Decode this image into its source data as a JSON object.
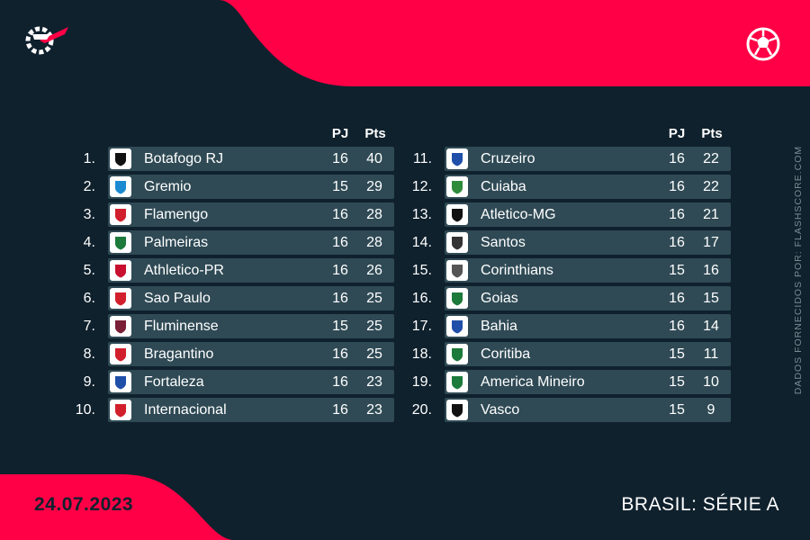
{
  "colors": {
    "background": "#0f212d",
    "accent": "#ff0046",
    "row": "#2f4a55",
    "muted": "#7b8a93"
  },
  "brand": {
    "logo_icon": "flashscore-logo-icon",
    "sport_icon": "soccer-ball-icon"
  },
  "headers": {
    "pj": "PJ",
    "pts": "Pts"
  },
  "left_table": [
    {
      "rank": "1.",
      "team": "Botafogo RJ",
      "pj": "16",
      "pts": "40",
      "badge_color": "#111111"
    },
    {
      "rank": "2.",
      "team": "Gremio",
      "pj": "15",
      "pts": "29",
      "badge_color": "#1b8ad1"
    },
    {
      "rank": "3.",
      "team": "Flamengo",
      "pj": "16",
      "pts": "28",
      "badge_color": "#d11f2b"
    },
    {
      "rank": "4.",
      "team": "Palmeiras",
      "pj": "16",
      "pts": "28",
      "badge_color": "#1c7a3a"
    },
    {
      "rank": "5.",
      "team": "Athletico-PR",
      "pj": "16",
      "pts": "26",
      "badge_color": "#c8102e"
    },
    {
      "rank": "6.",
      "team": "Sao Paulo",
      "pj": "16",
      "pts": "25",
      "badge_color": "#d11f2b"
    },
    {
      "rank": "7.",
      "team": "Fluminense",
      "pj": "15",
      "pts": "25",
      "badge_color": "#7a1f35"
    },
    {
      "rank": "8.",
      "team": "Bragantino",
      "pj": "16",
      "pts": "25",
      "badge_color": "#d11f2b"
    },
    {
      "rank": "9.",
      "team": "Fortaleza",
      "pj": "16",
      "pts": "23",
      "badge_color": "#1f4fa8"
    },
    {
      "rank": "10.",
      "team": "Internacional",
      "pj": "16",
      "pts": "23",
      "badge_color": "#d11f2b"
    }
  ],
  "right_table": [
    {
      "rank": "11.",
      "team": "Cruzeiro",
      "pj": "16",
      "pts": "22",
      "badge_color": "#1f4fa8"
    },
    {
      "rank": "12.",
      "team": "Cuiaba",
      "pj": "16",
      "pts": "22",
      "badge_color": "#2e8b3a"
    },
    {
      "rank": "13.",
      "team": "Atletico-MG",
      "pj": "16",
      "pts": "21",
      "badge_color": "#111111"
    },
    {
      "rank": "14.",
      "team": "Santos",
      "pj": "16",
      "pts": "17",
      "badge_color": "#333333"
    },
    {
      "rank": "15.",
      "team": "Corinthians",
      "pj": "15",
      "pts": "16",
      "badge_color": "#555555"
    },
    {
      "rank": "16.",
      "team": "Goias",
      "pj": "16",
      "pts": "15",
      "badge_color": "#1c7a3a"
    },
    {
      "rank": "17.",
      "team": "Bahia",
      "pj": "16",
      "pts": "14",
      "badge_color": "#1f4fa8"
    },
    {
      "rank": "18.",
      "team": "Coritiba",
      "pj": "15",
      "pts": "11",
      "badge_color": "#1c7a3a"
    },
    {
      "rank": "19.",
      "team": "America Mineiro",
      "pj": "15",
      "pts": "10",
      "badge_color": "#1c7a3a"
    },
    {
      "rank": "20.",
      "team": "Vasco",
      "pj": "15",
      "pts": "9",
      "badge_color": "#111111"
    }
  ],
  "footer": {
    "date": "24.07.2023",
    "league": "BRASIL: SÉRIE A"
  },
  "credit": "DADOS FORNECIDOS POR: FLASHSCORE.COM"
}
